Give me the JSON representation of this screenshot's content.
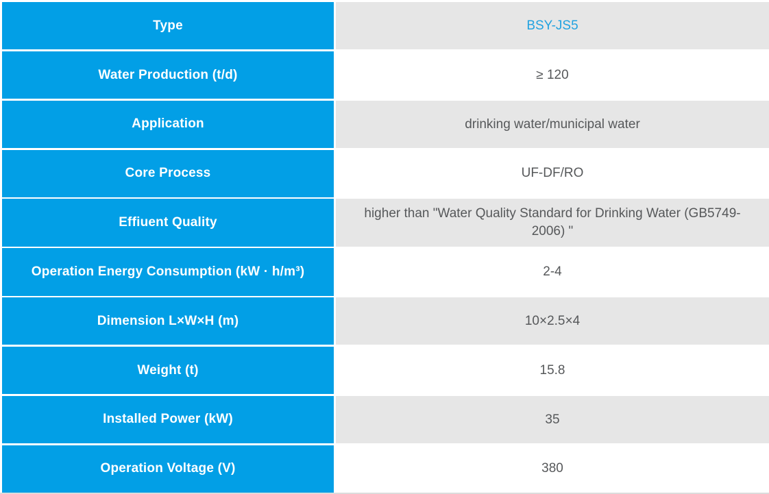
{
  "table": {
    "colors": {
      "label_column_bg": "#029fe6",
      "label_text": "#ffffff",
      "alt_row_bg": "#e6e6e6",
      "value_text": "#56585a",
      "model_value_text": "#21a2e0",
      "bottom_border": "#dcdcdc"
    },
    "rows": [
      {
        "label": "Type",
        "value": "BSY-JS5"
      },
      {
        "label": "Water Production (t/d)",
        "value": "≥ 120"
      },
      {
        "label": "Application",
        "value": "drinking water/municipal water"
      },
      {
        "label": "Core Process",
        "value": "UF-DF/RO"
      },
      {
        "label": "Effiuent Quality",
        "value": "higher than \"Water Quality Standard for Drinking Water (GB5749-2006) \""
      },
      {
        "label": "Operation Energy Consumption (kW · h/m³)",
        "value": "2-4"
      },
      {
        "label": "Dimension L×W×H (m)",
        "value": "10×2.5×4"
      },
      {
        "label": "Weight (t)",
        "value": "15.8"
      },
      {
        "label": "Installed Power (kW)",
        "value": "35"
      },
      {
        "label": "Operation Voltage (V)",
        "value": "380"
      }
    ]
  }
}
